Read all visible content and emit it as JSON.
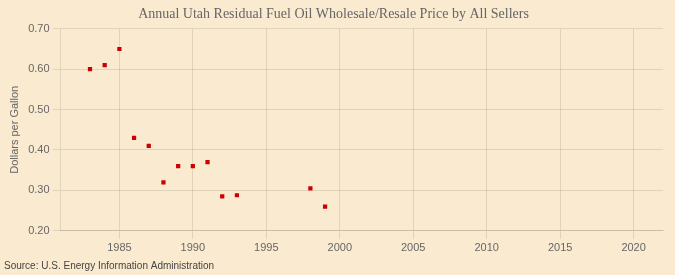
{
  "chart_data": {
    "type": "scatter",
    "title": "Annual Utah Residual Fuel Oil Wholesale/Resale Price by All Sellers",
    "ylabel": "Dollars per Gallon",
    "source": "Source: U.S. Energy Information Administration",
    "x": [
      1983,
      1984,
      1985,
      1986,
      1987,
      1988,
      1989,
      1990,
      1991,
      1992,
      1993,
      1998,
      1999
    ],
    "values": [
      0.6,
      0.61,
      0.65,
      0.43,
      0.41,
      0.32,
      0.36,
      0.36,
      0.37,
      0.285,
      0.288,
      0.305,
      0.26
    ],
    "color": "#cc0000",
    "marker": "square",
    "xlim": [
      1981,
      2022
    ],
    "ylim": [
      0.2,
      0.7
    ],
    "xticks": [
      1985,
      1990,
      1995,
      2000,
      2005,
      2010,
      2015,
      2020
    ],
    "yticks": [
      {
        "value": 0.2,
        "label": "0.20"
      },
      {
        "value": 0.3,
        "label": "0.30"
      },
      {
        "value": 0.4,
        "label": "0.40"
      },
      {
        "value": 0.5,
        "label": "0.50"
      },
      {
        "value": 0.6,
        "label": "0.60"
      },
      {
        "value": 0.7,
        "label": "0.70"
      }
    ],
    "grid": true
  }
}
